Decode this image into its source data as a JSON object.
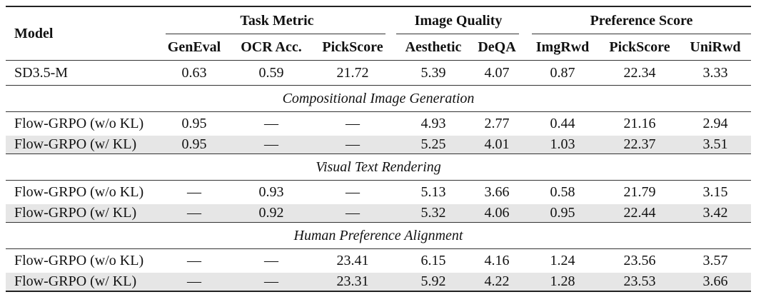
{
  "header": {
    "model": "Model",
    "groups": [
      "Task Metric",
      "Image Quality",
      "Preference Score"
    ],
    "columns": [
      "GenEval",
      "OCR Acc.",
      "PickScore",
      "Aesthetic",
      "DeQA",
      "ImgRwd",
      "PickScore",
      "UniRwd"
    ]
  },
  "baseline": {
    "model": "SD3.5-M",
    "values": [
      "0.63",
      "0.59",
      "21.72",
      "5.39",
      "4.07",
      "0.87",
      "22.34",
      "3.33"
    ]
  },
  "sections": [
    {
      "title": "Compositional Image Generation",
      "rows": [
        {
          "model": "Flow-GRPO (w/o KL)",
          "values": [
            "0.95",
            "—",
            "—",
            "4.93",
            "2.77",
            "0.44",
            "21.16",
            "2.94"
          ]
        },
        {
          "model": "Flow-GRPO (w/ KL)",
          "values": [
            "0.95",
            "—",
            "—",
            "5.25",
            "4.01",
            "1.03",
            "22.37",
            "3.51"
          ]
        }
      ]
    },
    {
      "title": "Visual Text Rendering",
      "rows": [
        {
          "model": "Flow-GRPO (w/o KL)",
          "values": [
            "—",
            "0.93",
            "—",
            "5.13",
            "3.66",
            "0.58",
            "21.79",
            "3.15"
          ]
        },
        {
          "model": "Flow-GRPO (w/ KL)",
          "values": [
            "—",
            "0.92",
            "—",
            "5.32",
            "4.06",
            "0.95",
            "22.44",
            "3.42"
          ]
        }
      ]
    },
    {
      "title": "Human Preference Alignment",
      "rows": [
        {
          "model": "Flow-GRPO (w/o KL)",
          "values": [
            "—",
            "—",
            "23.41",
            "6.15",
            "4.16",
            "1.24",
            "23.56",
            "3.57"
          ]
        },
        {
          "model": "Flow-GRPO (w/ KL)",
          "values": [
            "—",
            "—",
            "23.31",
            "5.92",
            "4.22",
            "1.28",
            "23.53",
            "3.66"
          ]
        }
      ]
    }
  ]
}
